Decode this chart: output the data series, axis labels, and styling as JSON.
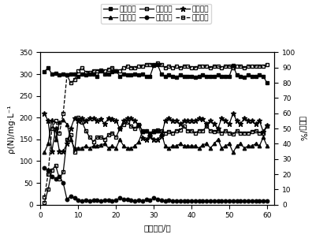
{
  "xlabel": "运行周期/个",
  "ylabel_left": "ρ(N)/mg·L⁻¹",
  "ylabel_right": "百分率/%",
  "xlim": [
    0,
    62
  ],
  "ylim_left": [
    0,
    350
  ],
  "ylim_right": [
    0,
    100
  ],
  "xticks": [
    0,
    10,
    20,
    30,
    40,
    50,
    60
  ],
  "yticks_left": [
    0,
    50,
    100,
    150,
    200,
    250,
    300,
    350
  ],
  "yticks_right": [
    0,
    10,
    20,
    30,
    40,
    50,
    60,
    70,
    80,
    90,
    100
  ],
  "legend_labels": [
    "进水氨氮",
    "出水氨氮",
    "出水亚氮",
    "出水础氮",
    "氨氧化率",
    "亚础化率"
  ],
  "influent_NH4_x": [
    1,
    2,
    3,
    4,
    5,
    6,
    7,
    8,
    9,
    10,
    11,
    12,
    13,
    14,
    15,
    16,
    17,
    18,
    19,
    20,
    21,
    22,
    23,
    24,
    25,
    26,
    27,
    28,
    29,
    30,
    31,
    32,
    33,
    34,
    35,
    36,
    37,
    38,
    39,
    40,
    41,
    42,
    43,
    44,
    45,
    46,
    47,
    48,
    49,
    50,
    51,
    52,
    53,
    54,
    55,
    56,
    57,
    58,
    59,
    60
  ],
  "influent_NH4_y": [
    305,
    315,
    300,
    302,
    298,
    300,
    298,
    300,
    300,
    295,
    300,
    298,
    300,
    300,
    295,
    310,
    300,
    300,
    305,
    308,
    295,
    300,
    298,
    298,
    300,
    298,
    300,
    295,
    295,
    320,
    322,
    300,
    295,
    298,
    295,
    293,
    298,
    295,
    295,
    295,
    293,
    295,
    298,
    295,
    295,
    295,
    298,
    295,
    295,
    295,
    320,
    298,
    295,
    293,
    298,
    295,
    295,
    298,
    295,
    280
  ],
  "effluent_NH4_x": [
    1,
    2,
    3,
    4,
    5,
    6,
    7,
    8,
    9,
    10,
    11,
    12,
    13,
    14,
    15,
    16,
    17,
    18,
    19,
    20,
    21,
    22,
    23,
    24,
    25,
    26,
    27,
    28,
    29,
    30,
    31,
    32,
    33,
    34,
    35,
    36,
    37,
    38,
    39,
    40,
    41,
    42,
    43,
    44,
    45,
    46,
    47,
    48,
    49,
    50,
    51,
    52,
    53,
    54,
    55,
    56,
    57,
    58,
    59,
    60
  ],
  "effluent_NH4_y": [
    120,
    140,
    195,
    150,
    190,
    195,
    185,
    150,
    130,
    130,
    130,
    135,
    130,
    135,
    135,
    138,
    140,
    130,
    135,
    130,
    150,
    135,
    130,
    130,
    135,
    145,
    168,
    170,
    165,
    168,
    170,
    165,
    135,
    130,
    135,
    135,
    140,
    135,
    135,
    135,
    135,
    130,
    138,
    140,
    130,
    140,
    150,
    130,
    135,
    140,
    120,
    135,
    140,
    130,
    135,
    135,
    140,
    135,
    155,
    135
  ],
  "effluent_NO2_x": [
    1,
    2,
    3,
    4,
    5,
    6,
    7,
    8,
    9,
    10,
    11,
    12,
    13,
    14,
    15,
    16,
    17,
    18,
    19,
    20,
    21,
    22,
    23,
    24,
    25,
    26,
    27,
    28,
    29,
    30,
    31,
    32,
    33,
    34,
    35,
    36,
    37,
    38,
    39,
    40,
    41,
    42,
    43,
    44,
    45,
    46,
    47,
    48,
    49,
    50,
    51,
    52,
    53,
    54,
    55,
    56,
    57,
    58,
    59,
    60
  ],
  "effluent_NO2_y": [
    5,
    35,
    80,
    90,
    60,
    75,
    150,
    160,
    120,
    200,
    190,
    170,
    155,
    145,
    155,
    155,
    150,
    160,
    165,
    155,
    175,
    185,
    190,
    180,
    175,
    185,
    170,
    170,
    165,
    170,
    172,
    170,
    165,
    168,
    165,
    170,
    172,
    180,
    170,
    170,
    165,
    170,
    170,
    180,
    170,
    168,
    170,
    165,
    170,
    165,
    162,
    170,
    165,
    165,
    165,
    168,
    170,
    165,
    165,
    180
  ],
  "effluent_NO3_x": [
    1,
    2,
    3,
    4,
    5,
    6,
    7,
    8,
    9,
    10,
    11,
    12,
    13,
    14,
    15,
    16,
    17,
    18,
    19,
    20,
    21,
    22,
    23,
    24,
    25,
    26,
    27,
    28,
    29,
    30,
    31,
    32,
    33,
    34,
    35,
    36,
    37,
    38,
    39,
    40,
    41,
    42,
    43,
    44,
    45,
    46,
    47,
    48,
    49,
    50,
    51,
    52,
    53,
    54,
    55,
    56,
    57,
    58,
    59,
    60
  ],
  "effluent_NO3_y": [
    85,
    80,
    65,
    60,
    65,
    50,
    12,
    20,
    15,
    10,
    8,
    10,
    8,
    10,
    10,
    8,
    10,
    10,
    8,
    10,
    15,
    12,
    12,
    10,
    8,
    10,
    8,
    12,
    10,
    15,
    12,
    10,
    8,
    10,
    8,
    8,
    8,
    8,
    8,
    8,
    8,
    8,
    8,
    8,
    8,
    8,
    8,
    8,
    8,
    8,
    8,
    8,
    8,
    8,
    8,
    8,
    8,
    8,
    8,
    8
  ],
  "nitrification_x": [
    1,
    2,
    3,
    4,
    5,
    6,
    7,
    8,
    9,
    10,
    11,
    12,
    13,
    14,
    15,
    16,
    17,
    18,
    19,
    20,
    21,
    22,
    23,
    24,
    25,
    26,
    27,
    28,
    29,
    30,
    31,
    32,
    33,
    34,
    35,
    36,
    37,
    38,
    39,
    40,
    41,
    42,
    43,
    44,
    45,
    46,
    47,
    48,
    49,
    50,
    51,
    52,
    53,
    54,
    55,
    56,
    57,
    58,
    59,
    60
  ],
  "nitrification_y": [
    60,
    55,
    35,
    50,
    35,
    35,
    40,
    50,
    57,
    55,
    57,
    55,
    57,
    57,
    55,
    56,
    53,
    57,
    56,
    55,
    50,
    55,
    57,
    57,
    55,
    52,
    44,
    43,
    45,
    43,
    43,
    45,
    55,
    57,
    55,
    55,
    53,
    55,
    55,
    55,
    55,
    57,
    56,
    53,
    55,
    53,
    50,
    57,
    55,
    53,
    60,
    55,
    53,
    57,
    55,
    55,
    53,
    55,
    48,
    52
  ],
  "nitrosation_x": [
    1,
    2,
    3,
    4,
    5,
    6,
    7,
    8,
    9,
    10,
    11,
    12,
    13,
    14,
    15,
    16,
    17,
    18,
    19,
    20,
    21,
    22,
    23,
    24,
    25,
    26,
    27,
    28,
    29,
    30,
    31,
    32,
    33,
    34,
    35,
    36,
    37,
    38,
    39,
    40,
    41,
    42,
    43,
    44,
    45,
    46,
    47,
    48,
    49,
    50,
    51,
    52,
    53,
    54,
    55,
    56,
    57,
    58,
    59,
    60
  ],
  "nitrosation_y": [
    5,
    20,
    50,
    55,
    47,
    60,
    85,
    80,
    82,
    88,
    90,
    87,
    87,
    88,
    88,
    88,
    88,
    89,
    90,
    88,
    88,
    90,
    91,
    90,
    90,
    91,
    91,
    92,
    92,
    92,
    93,
    92,
    90,
    91,
    90,
    91,
    90,
    91,
    91,
    90,
    90,
    91,
    91,
    91,
    90,
    91,
    91,
    90,
    91,
    91,
    90,
    91,
    91,
    90,
    91,
    91,
    91,
    91,
    91,
    92
  ],
  "fontsize_ticks": 6.5,
  "fontsize_labels": 7.5,
  "fontsize_legend": 6.5
}
